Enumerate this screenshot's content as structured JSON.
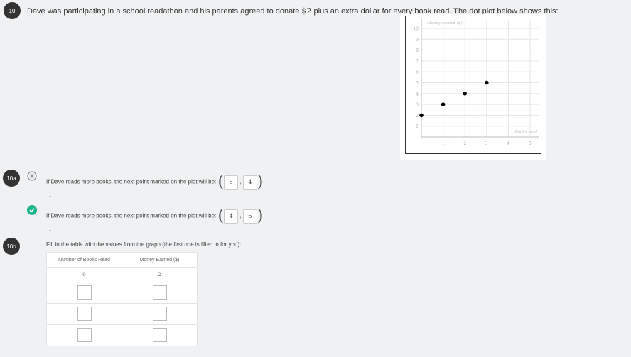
{
  "question": {
    "number": "10",
    "text_before": "Dave was participating in a school readathon and his parents agreed to donate ",
    "amount": "$2",
    "text_after": " plus an extra dollar for every book read. The dot plot below shows this:"
  },
  "chart_data": {
    "type": "scatter",
    "xlabel": "Books read",
    "ylabel": "Money earned ($)",
    "xlim": [
      0,
      5
    ],
    "ylim": [
      0,
      10
    ],
    "x_ticks": [
      "1",
      "2",
      "3",
      "4",
      "5"
    ],
    "y_ticks": [
      "1",
      "2",
      "3",
      "4",
      "5",
      "6",
      "7",
      "8",
      "9",
      "10"
    ],
    "grid": true,
    "points": [
      {
        "x": 0,
        "y": 2
      },
      {
        "x": 1,
        "y": 3
      },
      {
        "x": 2,
        "y": 4
      },
      {
        "x": 3,
        "y": 5
      }
    ]
  },
  "part_a": {
    "number": "10a",
    "attempts": [
      {
        "status": "incorrect",
        "status_icon": "x-circle-icon",
        "prompt": "If Dave reads more books, the next point marked on the plot will be:",
        "x": "6",
        "y": "4",
        "more": "..."
      },
      {
        "status": "correct",
        "status_icon": "check-circle-icon",
        "prompt": "If Dave reads more books, the next point marked on the plot will be:",
        "x": "4",
        "y": "6",
        "more": "..."
      }
    ],
    "correct_color": "#1eb48c"
  },
  "part_b": {
    "number": "10b",
    "prompt": "Fill in the table with the values from the graph (the first one is filled in for you):",
    "headers": [
      "Number of Books Read",
      "Money Earned ($)"
    ],
    "rows": [
      [
        "0",
        "2"
      ],
      [
        "",
        ""
      ],
      [
        "",
        ""
      ],
      [
        "",
        ""
      ]
    ]
  }
}
